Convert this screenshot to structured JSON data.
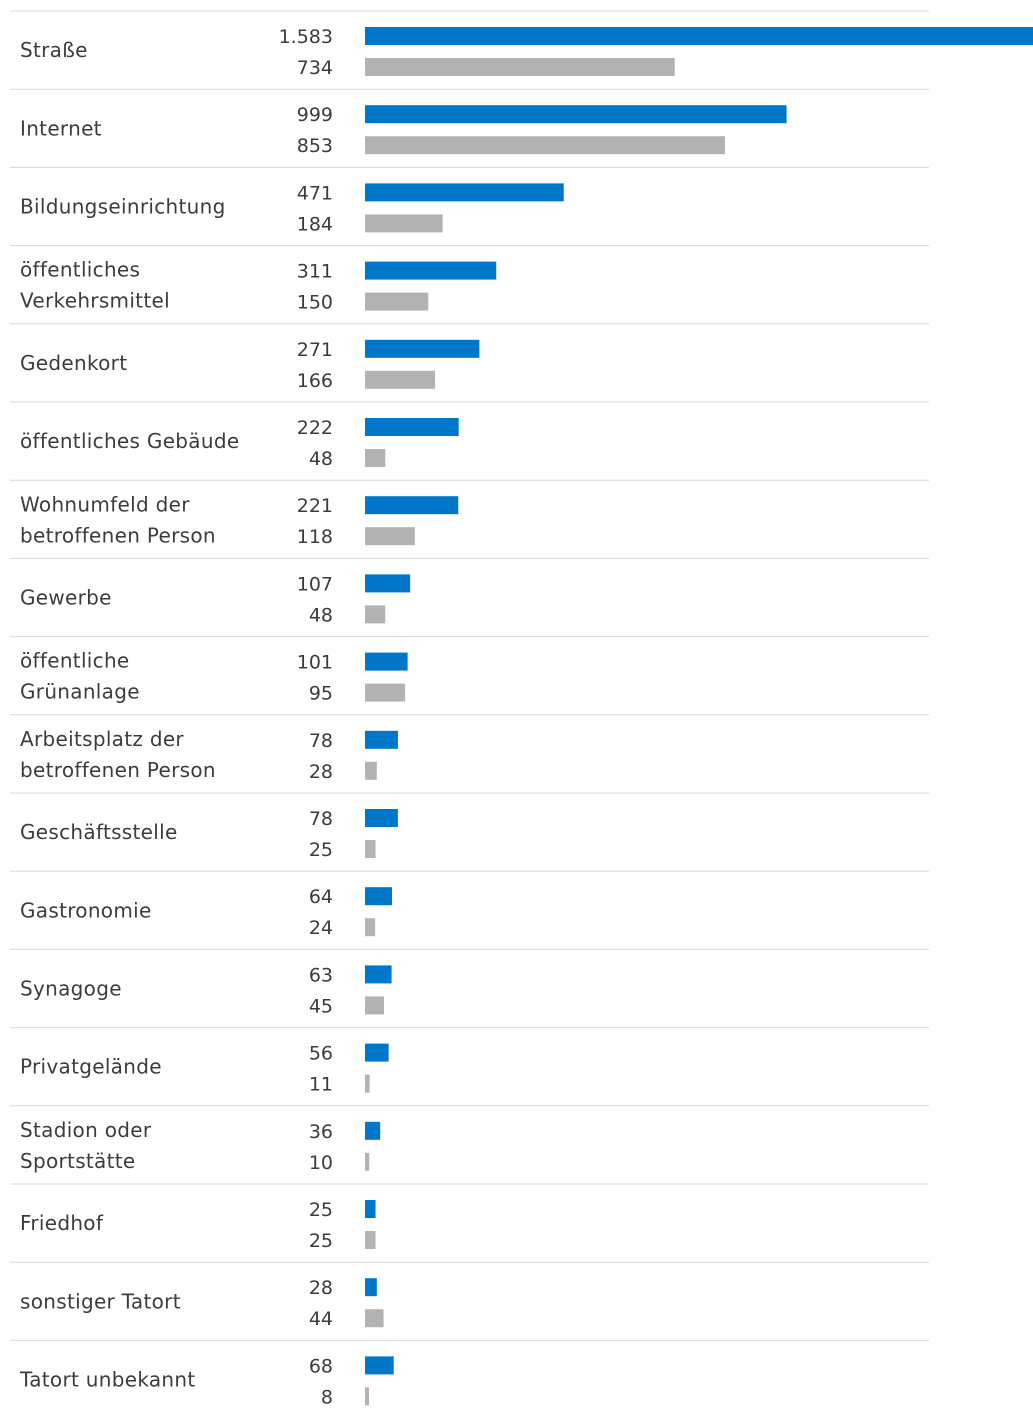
{
  "chart_data": {
    "type": "bar",
    "orientation": "horizontal",
    "grid": false,
    "colors": {
      "primary": "#0077c8",
      "secondary": "#b3b3b4",
      "separator": "#d9d9d9"
    },
    "categories": [
      [
        "Straße"
      ],
      [
        "Internet"
      ],
      [
        "Bildungseinrichtung"
      ],
      [
        "öffentliches",
        "Verkehrsmittel"
      ],
      [
        "Gedenkort"
      ],
      [
        "öffentliches Gebäude"
      ],
      [
        "Wohnumfeld der",
        "betroffenen Person"
      ],
      [
        "Gewerbe"
      ],
      [
        "öffentliche",
        "Grünanlage"
      ],
      [
        "Arbeitsplatz der",
        "betroffenen Person"
      ],
      [
        "Geschäftsstelle"
      ],
      [
        "Gastronomie"
      ],
      [
        "Synagoge"
      ],
      [
        "Privatgelände"
      ],
      [
        "Stadion oder",
        "Sportstätte"
      ],
      [
        "Friedhof"
      ],
      [
        "sonstiger Tatort"
      ],
      [
        "Tatort unbekannt"
      ]
    ],
    "series": [
      {
        "color": "#0077c8",
        "values": [
          1583,
          999,
          471,
          311,
          271,
          222,
          221,
          107,
          101,
          78,
          78,
          64,
          63,
          56,
          36,
          25,
          28,
          68
        ],
        "labels": [
          "1.583",
          "999",
          "471",
          "311",
          "271",
          "222",
          "221",
          "107",
          "101",
          "78",
          "78",
          "64",
          "63",
          "56",
          "36",
          "25",
          "28",
          "68"
        ]
      },
      {
        "color": "#b3b3b4",
        "values": [
          734,
          853,
          184,
          150,
          166,
          48,
          118,
          48,
          95,
          28,
          25,
          24,
          45,
          11,
          10,
          25,
          44,
          8
        ],
        "labels": [
          "734",
          "853",
          "184",
          "150",
          "166",
          "48",
          "118",
          "48",
          "95",
          "28",
          "25",
          "24",
          "45",
          "11",
          "10",
          "25",
          "44",
          "8"
        ]
      }
    ]
  }
}
